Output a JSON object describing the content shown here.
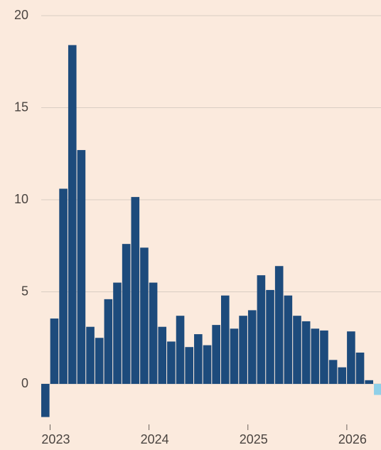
{
  "chart_data": {
    "type": "bar",
    "categories": [
      null,
      "2023",
      null,
      null,
      null,
      null,
      null,
      null,
      null,
      null,
      null,
      null,
      "2024",
      null,
      null,
      null,
      null,
      null,
      null,
      null,
      null,
      null,
      null,
      "2025",
      null,
      null,
      null,
      null,
      null,
      null,
      null,
      null,
      null,
      null,
      "2026",
      null,
      null,
      null
    ],
    "series": [
      {
        "color": "#1d4b7c",
        "values": [
          -1.8,
          3.55,
          10.6,
          18.4,
          12.7,
          3.1,
          2.5,
          4.6,
          5.5,
          7.6,
          10.15,
          7.4,
          5.5,
          3.1,
          2.3,
          3.7,
          2.0,
          2.7,
          2.1,
          3.2,
          4.8,
          3.0,
          3.7,
          4.0,
          5.9,
          5.1,
          6.4,
          4.8,
          3.7,
          3.4,
          3.0,
          2.9,
          1.3,
          0.9,
          2.85,
          1.7,
          0.2,
          null
        ]
      },
      {
        "color": "#8fd0e8",
        "values": [
          null,
          null,
          null,
          null,
          null,
          null,
          null,
          null,
          null,
          null,
          null,
          null,
          null,
          null,
          null,
          null,
          null,
          null,
          null,
          null,
          null,
          null,
          null,
          null,
          null,
          null,
          null,
          null,
          null,
          null,
          null,
          null,
          null,
          null,
          null,
          null,
          null,
          -0.6
        ]
      }
    ],
    "ylim": [
      -2,
      20
    ],
    "yticks": [
      0,
      5,
      10,
      15,
      20
    ],
    "grid": true
  }
}
